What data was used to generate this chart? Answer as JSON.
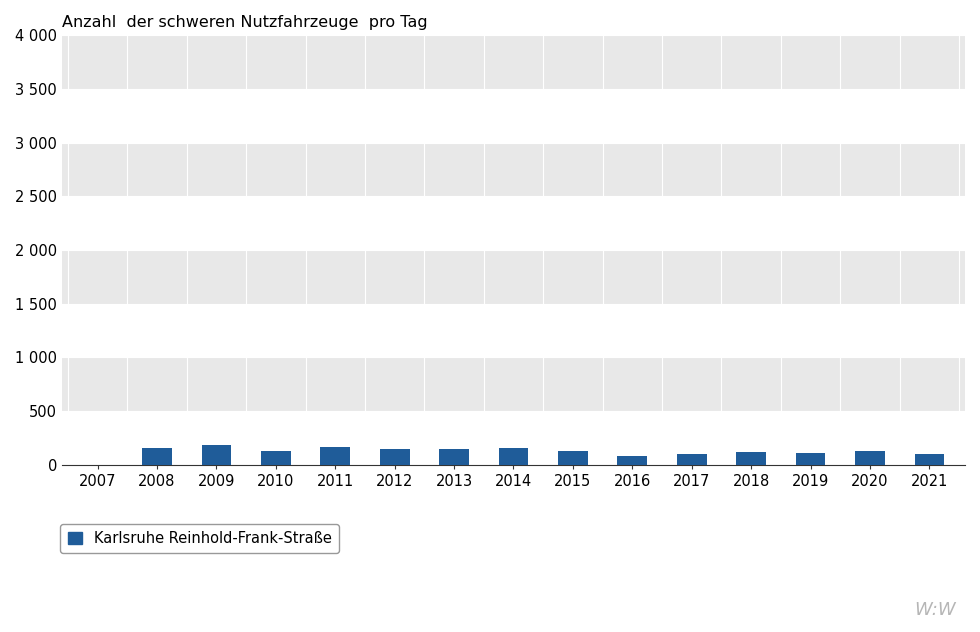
{
  "title": "Anzahl  der schweren Nutzfahrzeuge  pro Tag",
  "years": [
    2007,
    2008,
    2009,
    2010,
    2011,
    2012,
    2013,
    2014,
    2015,
    2016,
    2017,
    2018,
    2019,
    2020,
    2021
  ],
  "values": [
    0,
    155,
    185,
    130,
    170,
    150,
    145,
    155,
    130,
    80,
    105,
    115,
    110,
    130,
    105
  ],
  "bar_color": "#1F5C99",
  "background_color": "#FFFFFF",
  "plot_bg_color": "#FFFFFF",
  "band_color": "#E8E8E8",
  "grid_line_color": "#FFFFFF",
  "ylim": [
    0,
    4000
  ],
  "yticks": [
    0,
    500,
    1000,
    1500,
    2000,
    2500,
    3000,
    3500,
    4000
  ],
  "legend_label": "Karlsruhe Reinhold-Frank-Straße",
  "watermark": "W:W",
  "bar_width": 0.5
}
